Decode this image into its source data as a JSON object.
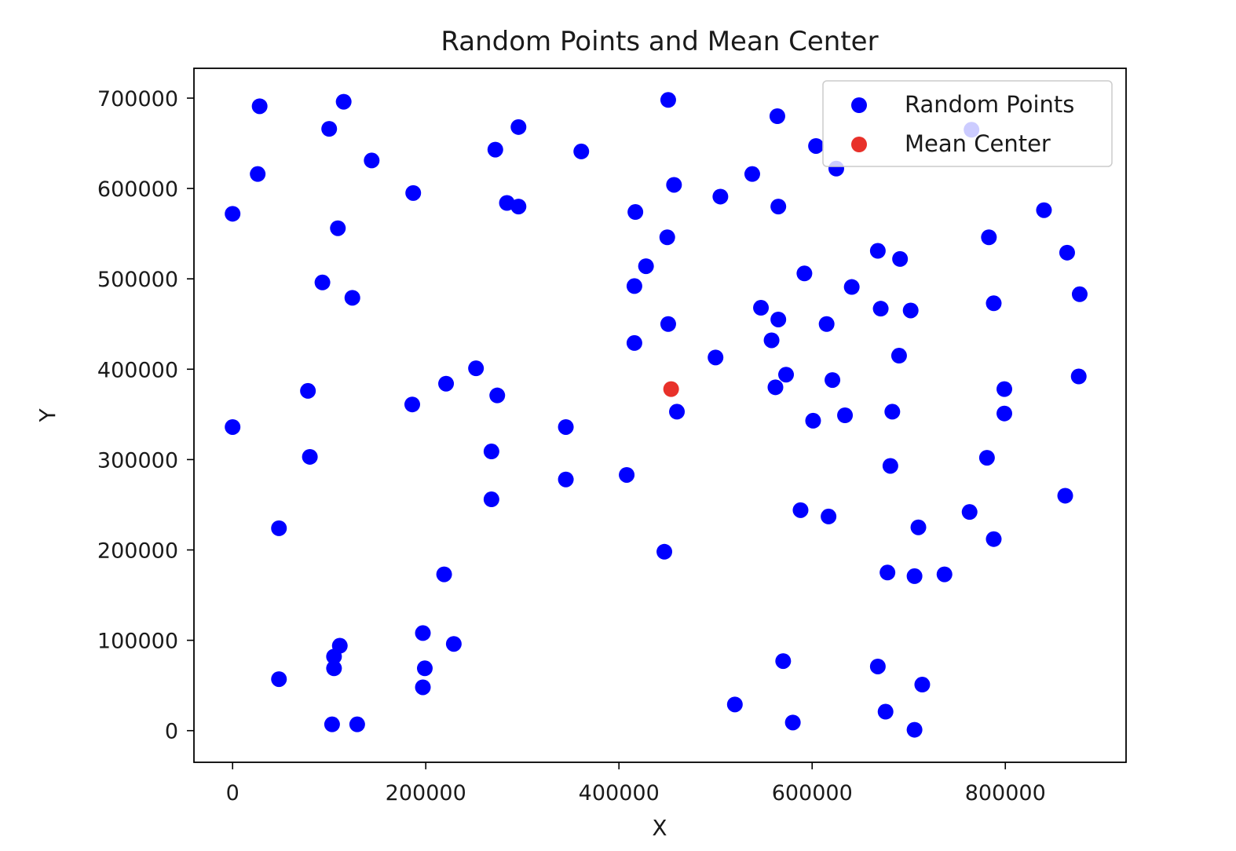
{
  "chart_data": {
    "type": "scatter",
    "title": "Random Points and Mean Center",
    "xlabel": "X",
    "ylabel": "Y",
    "xlim": [
      -40000,
      925000
    ],
    "ylim": [
      -35000,
      733000
    ],
    "xticks": [
      0,
      200000,
      400000,
      600000,
      800000
    ],
    "yticks": [
      0,
      100000,
      200000,
      300000,
      400000,
      500000,
      600000,
      700000
    ],
    "grid": false,
    "legend_position": "top-right",
    "series": [
      {
        "name": "Random Points",
        "color": "#0000ff",
        "points": [
          [
            28000,
            691000
          ],
          [
            115000,
            696000
          ],
          [
            100000,
            666000
          ],
          [
            26000,
            616000
          ],
          [
            0,
            572000
          ],
          [
            144000,
            631000
          ],
          [
            109000,
            556000
          ],
          [
            93000,
            496000
          ],
          [
            124000,
            479000
          ],
          [
            187000,
            595000
          ],
          [
            272000,
            643000
          ],
          [
            296000,
            668000
          ],
          [
            284000,
            584000
          ],
          [
            296000,
            580000
          ],
          [
            361000,
            641000
          ],
          [
            451000,
            698000
          ],
          [
            564000,
            680000
          ],
          [
            604000,
            647000
          ],
          [
            625000,
            622000
          ],
          [
            457000,
            604000
          ],
          [
            505000,
            591000
          ],
          [
            538000,
            616000
          ],
          [
            565000,
            580000
          ],
          [
            417000,
            574000
          ],
          [
            450000,
            546000
          ],
          [
            428000,
            514000
          ],
          [
            416000,
            492000
          ],
          [
            451000,
            450000
          ],
          [
            416000,
            429000
          ],
          [
            500000,
            413000
          ],
          [
            547000,
            468000
          ],
          [
            565000,
            455000
          ],
          [
            558000,
            432000
          ],
          [
            592000,
            506000
          ],
          [
            615000,
            450000
          ],
          [
            641000,
            491000
          ],
          [
            668000,
            531000
          ],
          [
            691000,
            522000
          ],
          [
            671000,
            467000
          ],
          [
            702000,
            465000
          ],
          [
            690000,
            415000
          ],
          [
            573000,
            394000
          ],
          [
            562000,
            380000
          ],
          [
            621000,
            388000
          ],
          [
            601000,
            343000
          ],
          [
            634000,
            349000
          ],
          [
            683000,
            353000
          ],
          [
            681000,
            293000
          ],
          [
            460000,
            353000
          ],
          [
            840000,
            576000
          ],
          [
            783000,
            546000
          ],
          [
            864000,
            529000
          ],
          [
            877000,
            483000
          ],
          [
            788000,
            473000
          ],
          [
            876000,
            392000
          ],
          [
            799000,
            378000
          ],
          [
            799000,
            351000
          ],
          [
            781000,
            302000
          ],
          [
            862000,
            260000
          ],
          [
            765000,
            665000
          ],
          [
            0,
            336000
          ],
          [
            78000,
            376000
          ],
          [
            80000,
            303000
          ],
          [
            48000,
            224000
          ],
          [
            186000,
            361000
          ],
          [
            221000,
            384000
          ],
          [
            252000,
            401000
          ],
          [
            274000,
            371000
          ],
          [
            268000,
            309000
          ],
          [
            268000,
            256000
          ],
          [
            345000,
            336000
          ],
          [
            345000,
            278000
          ],
          [
            408000,
            283000
          ],
          [
            447000,
            198000
          ],
          [
            219000,
            173000
          ],
          [
            197000,
            108000
          ],
          [
            229000,
            96000
          ],
          [
            199000,
            69000
          ],
          [
            197000,
            48000
          ],
          [
            111000,
            94000
          ],
          [
            105000,
            82000
          ],
          [
            105000,
            69000
          ],
          [
            48000,
            57000
          ],
          [
            103000,
            7000
          ],
          [
            129000,
            7000
          ],
          [
            588000,
            244000
          ],
          [
            617000,
            237000
          ],
          [
            710000,
            225000
          ],
          [
            763000,
            242000
          ],
          [
            788000,
            212000
          ],
          [
            678000,
            175000
          ],
          [
            706000,
            171000
          ],
          [
            737000,
            173000
          ],
          [
            570000,
            77000
          ],
          [
            668000,
            71000
          ],
          [
            714000,
            51000
          ],
          [
            676000,
            21000
          ],
          [
            520000,
            29000
          ],
          [
            580000,
            9000
          ],
          [
            706000,
            1000
          ]
        ]
      },
      {
        "name": "Mean Center",
        "color": "#e8312a",
        "points": [
          [
            454000,
            378000
          ]
        ]
      }
    ]
  }
}
